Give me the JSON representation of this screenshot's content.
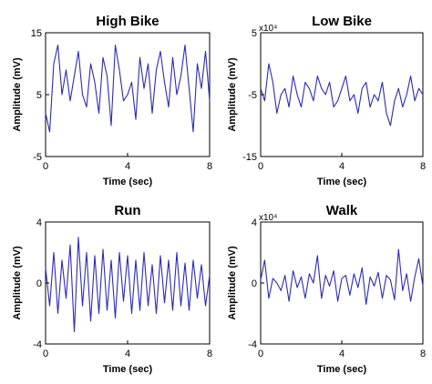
{
  "chart_data": [
    {
      "type": "line",
      "title": "High Bike",
      "xlabel": "Time (sec)",
      "ylabel": "Amplitude (mV)",
      "multiplier_label": "",
      "xlim": [
        0,
        8
      ],
      "ylim": [
        -5,
        15
      ],
      "xticks": [
        "0",
        "4",
        "8"
      ],
      "yticks": [
        "-5",
        "5",
        "15"
      ],
      "color": "#2b2bb8",
      "series": [
        {
          "x": [
            0,
            0.2,
            0.4,
            0.6,
            0.8,
            1.0,
            1.2,
            1.4,
            1.6,
            1.8,
            2.0,
            2.2,
            2.4,
            2.6,
            2.8,
            3.0,
            3.2,
            3.4,
            3.6,
            3.8,
            4.0,
            4.2,
            4.4,
            4.6,
            4.8,
            5.0,
            5.2,
            5.4,
            5.6,
            5.8,
            6.0,
            6.2,
            6.4,
            6.6,
            6.8,
            7.0,
            7.2,
            7.4,
            7.6,
            7.8,
            8.0
          ],
          "y": [
            2,
            -1,
            10,
            13,
            5,
            9,
            4,
            8,
            12,
            5,
            3,
            10,
            7,
            2,
            11,
            8,
            0,
            13,
            9,
            4,
            5,
            7,
            1,
            11,
            6,
            10,
            2,
            9,
            12,
            7,
            3,
            11,
            5,
            8,
            13,
            6,
            -1,
            10,
            6,
            12,
            4
          ]
        }
      ]
    },
    {
      "type": "line",
      "title": "Low Bike",
      "xlabel": "Time (sec)",
      "ylabel": "Amplitude (mV)",
      "multiplier_label": "x10⁴",
      "xlim": [
        0,
        8
      ],
      "ylim": [
        -15,
        5
      ],
      "xticks": [
        "0",
        "4",
        "8"
      ],
      "yticks": [
        "-15",
        "-5",
        "5"
      ],
      "color": "#2b2bb8",
      "series": [
        {
          "x": [
            0,
            0.2,
            0.4,
            0.6,
            0.8,
            1.0,
            1.2,
            1.4,
            1.6,
            1.8,
            2.0,
            2.2,
            2.4,
            2.6,
            2.8,
            3.0,
            3.2,
            3.4,
            3.6,
            3.8,
            4.0,
            4.2,
            4.4,
            4.6,
            4.8,
            5.0,
            5.2,
            5.4,
            5.6,
            5.8,
            6.0,
            6.2,
            6.4,
            6.6,
            6.8,
            7.0,
            7.2,
            7.4,
            7.6,
            7.8,
            8.0
          ],
          "y": [
            -4,
            -6,
            0,
            -3,
            -8,
            -5,
            -4,
            -7,
            -2,
            -5,
            -7,
            -3,
            -4,
            -6,
            -2,
            -4,
            -5,
            -3,
            -7,
            -6,
            -4,
            -2,
            -6,
            -5,
            -8,
            -4,
            -3,
            -7,
            -5,
            -6,
            -3,
            -8,
            -10,
            -6,
            -4,
            -7,
            -5,
            -2,
            -6,
            -4,
            -5
          ]
        }
      ]
    },
    {
      "type": "line",
      "title": "Run",
      "xlabel": "Time (sec)",
      "ylabel": "Amplitude (mV)",
      "multiplier_label": "",
      "xlim": [
        0,
        8
      ],
      "ylim": [
        -4,
        4
      ],
      "xticks": [
        "0",
        "4",
        "8"
      ],
      "yticks": [
        "-4",
        "0",
        "4"
      ],
      "color": "#2b2bb8",
      "series": [
        {
          "x": [
            0,
            0.2,
            0.4,
            0.6,
            0.8,
            1.0,
            1.2,
            1.4,
            1.6,
            1.8,
            2.0,
            2.2,
            2.4,
            2.6,
            2.8,
            3.0,
            3.2,
            3.4,
            3.6,
            3.8,
            4.0,
            4.2,
            4.4,
            4.6,
            4.8,
            5.0,
            5.2,
            5.4,
            5.6,
            5.8,
            6.0,
            6.2,
            6.4,
            6.6,
            6.8,
            7.0,
            7.2,
            7.4,
            7.6,
            7.8,
            8.0
          ],
          "y": [
            1,
            -1.5,
            2,
            -2,
            1.5,
            -1,
            2.5,
            -3.2,
            3,
            -1.5,
            2,
            -2.5,
            1.8,
            -2,
            2.2,
            -1.8,
            1.5,
            -2.3,
            2,
            -1.2,
            1.8,
            -2,
            1.5,
            -1.8,
            2,
            -1.5,
            1.2,
            -2,
            1.8,
            -1.3,
            1.5,
            -1.8,
            2,
            -1.5,
            1.3,
            -1.8,
            1.5,
            -1,
            1.2,
            -1.5,
            0.5
          ]
        }
      ]
    },
    {
      "type": "line",
      "title": "Walk",
      "xlabel": "Time (sec)",
      "ylabel": "Amplitude (mV)",
      "multiplier_label": "x10⁴",
      "xlim": [
        0,
        8
      ],
      "ylim": [
        -4,
        4
      ],
      "xticks": [
        "0",
        "4",
        "8"
      ],
      "yticks": [
        "-4",
        "0",
        "4"
      ],
      "color": "#2b2bb8",
      "series": [
        {
          "x": [
            0,
            0.2,
            0.4,
            0.6,
            0.8,
            1.0,
            1.2,
            1.4,
            1.6,
            1.8,
            2.0,
            2.2,
            2.4,
            2.6,
            2.8,
            3.0,
            3.2,
            3.4,
            3.6,
            3.8,
            4.0,
            4.2,
            4.4,
            4.6,
            4.8,
            5.0,
            5.2,
            5.4,
            5.6,
            5.8,
            6.0,
            6.2,
            6.4,
            6.6,
            6.8,
            7.0,
            7.2,
            7.4,
            7.6,
            7.8,
            8.0
          ],
          "y": [
            0.2,
            1.5,
            -1,
            0.3,
            0,
            -0.5,
            0.5,
            -1.2,
            0.8,
            -0.3,
            0.4,
            -1,
            0.6,
            0,
            1.8,
            -1,
            0.5,
            -0.2,
            0.8,
            -1.2,
            0.3,
            0.5,
            -0.8,
            0.6,
            -0.3,
            1,
            -1.4,
            0.4,
            -0.2,
            0.7,
            -1,
            0.5,
            0.2,
            -1.1,
            2.2,
            -0.5,
            0.6,
            -1.2,
            0.4,
            1.6,
            -0.2
          ]
        }
      ]
    }
  ]
}
